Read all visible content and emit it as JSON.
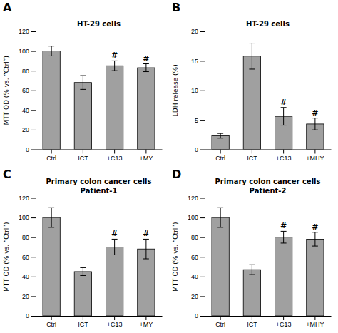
{
  "chart_data": [
    {
      "type": "bar",
      "title": "HT-29 cells",
      "categories": [
        "Ctrl",
        "ICT",
        "+C13",
        "+MY"
      ],
      "values": [
        100,
        68,
        85,
        83
      ],
      "errors": [
        5,
        7,
        5,
        4
      ],
      "ylabel": "MTT OD (% vs. “Ctrl”)",
      "ylim": [
        0,
        120
      ],
      "yticks": [
        0,
        20,
        40,
        60,
        80,
        100,
        120
      ],
      "color": "#a0a0a0",
      "annotations": [
        {
          "text": "A"
        },
        {
          "text": "#",
          "category": "+C13"
        },
        {
          "text": "#",
          "category": "+MY"
        }
      ]
    },
    {
      "type": "bar",
      "title": "HT-29 cells",
      "categories": [
        "Ctrl",
        "ICT",
        "+C13",
        "+MHY"
      ],
      "values": [
        2.3,
        15.8,
        5.6,
        4.3
      ],
      "errors": [
        0.4,
        2.2,
        1.5,
        1.0
      ],
      "ylabel": "LDH release (%)",
      "ylim": [
        0,
        20
      ],
      "yticks": [
        0,
        5,
        10,
        15,
        20
      ],
      "color": "#a0a0a0",
      "annotations": [
        {
          "text": "B"
        },
        {
          "text": "#",
          "category": "+C13"
        },
        {
          "text": "#",
          "category": "+MHY"
        }
      ]
    },
    {
      "type": "bar",
      "title": "Primary colon cancer cells",
      "subtitle": "Patient-1",
      "categories": [
        "Ctrl",
        "ICT",
        "+C13",
        "+MY"
      ],
      "values": [
        100,
        45,
        70,
        68
      ],
      "errors": [
        10,
        4,
        8,
        10
      ],
      "ylabel": "MTT OD (% vs. “Ctrl”)",
      "ylim": [
        0,
        120
      ],
      "yticks": [
        0,
        20,
        40,
        60,
        80,
        100,
        120
      ],
      "color": "#a0a0a0",
      "annotations": [
        {
          "text": "C"
        },
        {
          "text": "#",
          "category": "+C13"
        },
        {
          "text": "#",
          "category": "+MY"
        }
      ]
    },
    {
      "type": "bar",
      "title": "Primary colon cancer cells",
      "subtitle": "Patient-2",
      "categories": [
        "Ctrl",
        "ICT",
        "+C13",
        "+MHY"
      ],
      "values": [
        100,
        47,
        80,
        78
      ],
      "errors": [
        10,
        5,
        6,
        7
      ],
      "ylabel": "MTT OD (% vs. “Ctrl”)",
      "ylim": [
        0,
        120
      ],
      "yticks": [
        0,
        20,
        40,
        60,
        80,
        100,
        120
      ],
      "color": "#a0a0a0",
      "annotations": [
        {
          "text": "D"
        },
        {
          "text": "#",
          "category": "+C13"
        },
        {
          "text": "#",
          "category": "+MHY"
        }
      ]
    }
  ]
}
